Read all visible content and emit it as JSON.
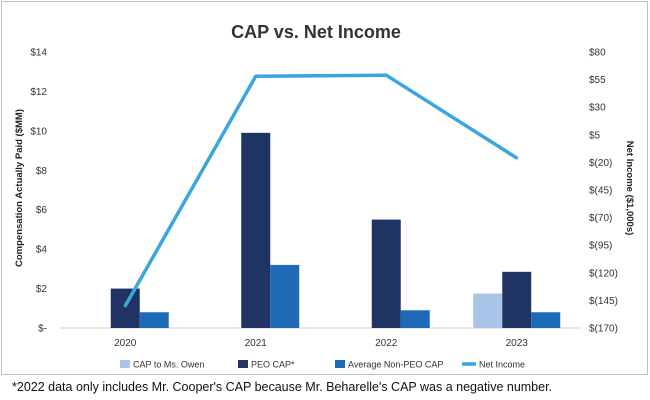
{
  "chart_data": {
    "type": "bar",
    "title": "CAP vs. Net Income",
    "categories": [
      "2020",
      "2021",
      "2022",
      "2023"
    ],
    "ylabel": "Compensation Actually Paid ($MM)",
    "ylabel_right": "Net Income ($1,000s)",
    "ylim": [
      0,
      14
    ],
    "ylim_right": [
      -170,
      80
    ],
    "yticks": [
      0,
      2,
      4,
      6,
      8,
      10,
      12,
      14
    ],
    "ytick_labels": [
      "$-",
      "$2",
      "$4",
      "$6",
      "$8",
      "$10",
      "$12",
      "$14"
    ],
    "yticks_right": [
      -170,
      -145,
      -120,
      -95,
      -70,
      -45,
      -20,
      5,
      30,
      55,
      80
    ],
    "ytick_labels_right": [
      "$(170)",
      "$(145)",
      "$(120)",
      "$(95)",
      "$(70)",
      "$(45)",
      "$(20)",
      "$5",
      "$30",
      "$55",
      "$80"
    ],
    "grid": false,
    "legend_position": "bottom",
    "series": [
      {
        "name": "CAP to Ms. Owen",
        "type": "bar",
        "color": "#a9c6e8",
        "values": [
          null,
          null,
          null,
          1.75
        ]
      },
      {
        "name": "PEO CAP*",
        "type": "bar",
        "color": "#1f3462",
        "values": [
          2.0,
          9.9,
          5.5,
          2.85
        ]
      },
      {
        "name": "Average Non-PEO CAP",
        "type": "bar",
        "color": "#1f6ab7",
        "values": [
          0.8,
          3.2,
          0.9,
          0.8
        ]
      },
      {
        "name": "Net Income",
        "type": "line",
        "axis": "right",
        "color": "#3ba6dd",
        "values": [
          -150,
          58,
          59,
          -16
        ]
      }
    ]
  },
  "footnote": "*2022 data only includes Mr. Cooper's CAP because Mr. Beharelle's CAP was a negative number."
}
